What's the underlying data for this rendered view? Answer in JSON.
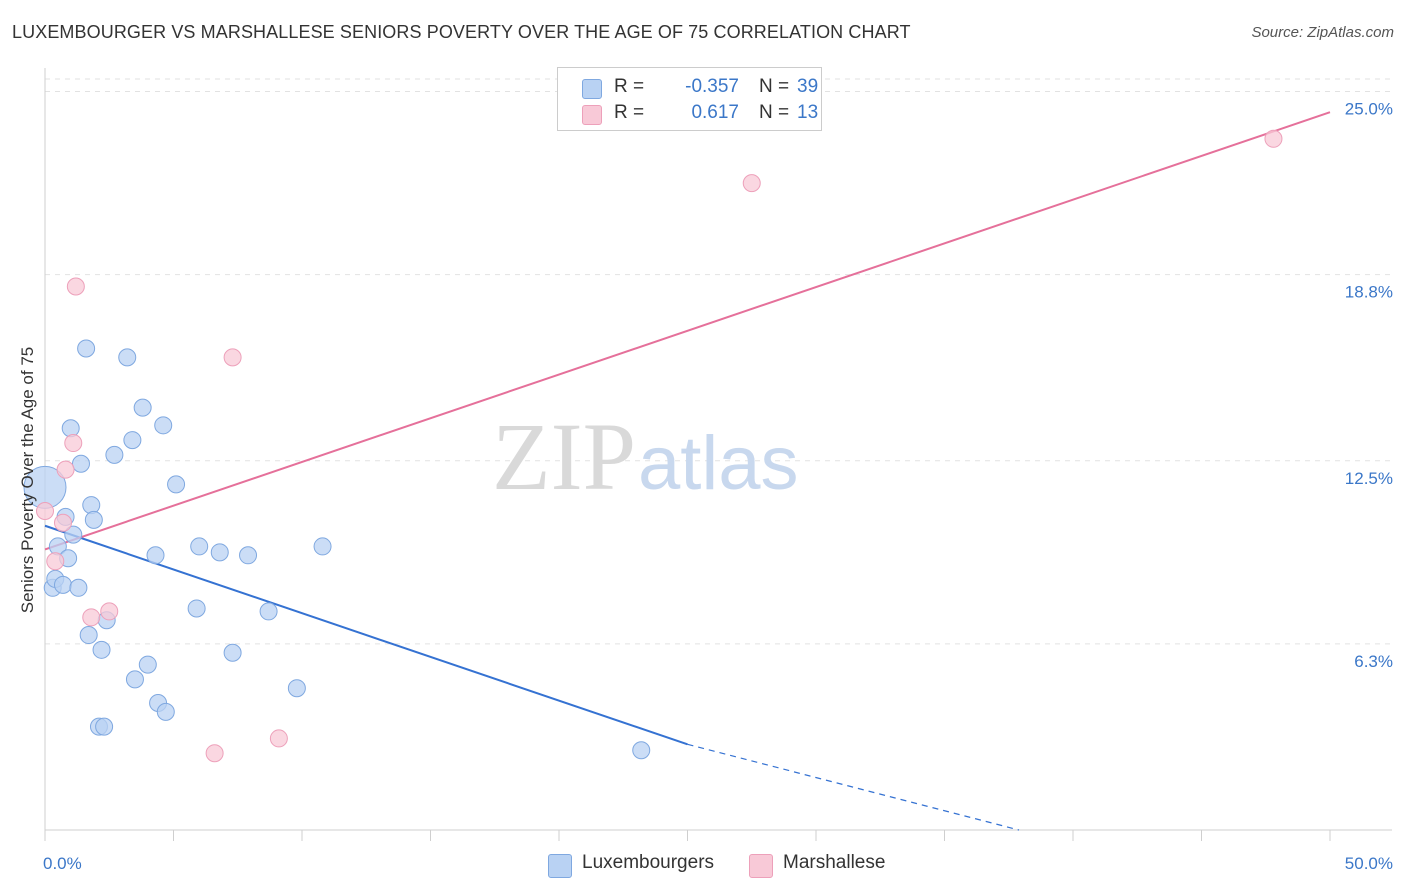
{
  "header": {
    "title": "LUXEMBOURGER VS MARSHALLESE SENIORS POVERTY OVER THE AGE OF 75 CORRELATION CHART",
    "source": "Source: ZipAtlas.com"
  },
  "watermark": {
    "part1": "ZIP",
    "part2": "atlas"
  },
  "legend": {
    "rows": [
      {
        "r_label": "R =",
        "r_value": "-0.357",
        "n_label": "N =",
        "n_value": "39"
      },
      {
        "r_label": "R =",
        "r_value": "0.617",
        "n_label": "N =",
        "n_value": "13"
      }
    ]
  },
  "bottom_legend": {
    "items": [
      "Luxembourgers",
      "Marshallese"
    ]
  },
  "colors": {
    "blue_fill": "#b9d2f3",
    "blue_stroke": "#7fa8e0",
    "blue_line": "#3572d2",
    "pink_fill": "#f8c9d7",
    "pink_stroke": "#eda0ba",
    "pink_line": "#e5709a",
    "tick_label": "#3b77c8",
    "grid": "#e2e2e2"
  },
  "chart_data": {
    "type": "scatter",
    "title": "LUXEMBOURGER VS MARSHALLESE SENIORS POVERTY OVER THE AGE OF 75 CORRELATION CHART",
    "xlabel": "",
    "ylabel": "Seniors Poverty Over the Age of 75",
    "xlim": [
      0,
      50
    ],
    "ylim": [
      0,
      26
    ],
    "x_tick_labels": [
      "0.0%",
      "50.0%"
    ],
    "y_ticks": [
      6.3,
      12.5,
      18.8,
      25.0
    ],
    "y_tick_labels": [
      "6.3%",
      "12.5%",
      "18.8%",
      "25.0%"
    ],
    "grid": true,
    "legend_position": "top-center",
    "series": [
      {
        "name": "Luxembourgers",
        "r": -0.357,
        "n": 39,
        "points": [
          {
            "x": 0.0,
            "y": 11.6,
            "big": true
          },
          {
            "x": 0.3,
            "y": 8.2
          },
          {
            "x": 0.4,
            "y": 8.5
          },
          {
            "x": 0.5,
            "y": 9.6
          },
          {
            "x": 0.7,
            "y": 8.3
          },
          {
            "x": 0.8,
            "y": 10.6
          },
          {
            "x": 0.9,
            "y": 9.2
          },
          {
            "x": 1.0,
            "y": 13.6
          },
          {
            "x": 1.1,
            "y": 10.0
          },
          {
            "x": 1.3,
            "y": 8.2
          },
          {
            "x": 1.4,
            "y": 12.4
          },
          {
            "x": 1.6,
            "y": 16.3
          },
          {
            "x": 1.7,
            "y": 6.6
          },
          {
            "x": 1.8,
            "y": 11.0
          },
          {
            "x": 1.9,
            "y": 10.5
          },
          {
            "x": 2.1,
            "y": 3.5
          },
          {
            "x": 2.2,
            "y": 6.1
          },
          {
            "x": 2.3,
            "y": 3.5
          },
          {
            "x": 2.4,
            "y": 7.1
          },
          {
            "x": 2.7,
            "y": 12.7
          },
          {
            "x": 3.2,
            "y": 16.0
          },
          {
            "x": 3.4,
            "y": 13.2
          },
          {
            "x": 3.5,
            "y": 5.1
          },
          {
            "x": 3.8,
            "y": 14.3
          },
          {
            "x": 4.0,
            "y": 5.6
          },
          {
            "x": 4.3,
            "y": 9.3
          },
          {
            "x": 4.4,
            "y": 4.3
          },
          {
            "x": 4.6,
            "y": 13.7
          },
          {
            "x": 4.7,
            "y": 4.0
          },
          {
            "x": 5.1,
            "y": 11.7
          },
          {
            "x": 5.9,
            "y": 7.5
          },
          {
            "x": 6.0,
            "y": 9.6
          },
          {
            "x": 6.8,
            "y": 9.4
          },
          {
            "x": 7.3,
            "y": 6.0
          },
          {
            "x": 7.9,
            "y": 9.3
          },
          {
            "x": 8.7,
            "y": 7.4
          },
          {
            "x": 9.8,
            "y": 4.8
          },
          {
            "x": 10.8,
            "y": 9.6
          },
          {
            "x": 23.2,
            "y": 2.7
          }
        ],
        "trend": {
          "x1": 0,
          "y1": 10.3,
          "x2": 25,
          "y2": 2.9,
          "dash_to_x": 37.9,
          "dash_to_y": 0
        }
      },
      {
        "name": "Marshallese",
        "r": 0.617,
        "n": 13,
        "points": [
          {
            "x": 0.0,
            "y": 10.8
          },
          {
            "x": 0.4,
            "y": 9.1
          },
          {
            "x": 0.7,
            "y": 10.4
          },
          {
            "x": 0.8,
            "y": 12.2
          },
          {
            "x": 1.1,
            "y": 13.1
          },
          {
            "x": 1.2,
            "y": 18.4
          },
          {
            "x": 1.8,
            "y": 7.2
          },
          {
            "x": 2.5,
            "y": 7.4
          },
          {
            "x": 6.6,
            "y": 2.6
          },
          {
            "x": 7.3,
            "y": 16.0
          },
          {
            "x": 9.1,
            "y": 3.1
          },
          {
            "x": 27.5,
            "y": 21.9
          },
          {
            "x": 47.8,
            "y": 23.4
          }
        ],
        "trend": {
          "x1": 0,
          "y1": 9.5,
          "x2": 50,
          "y2": 24.3
        }
      }
    ]
  }
}
